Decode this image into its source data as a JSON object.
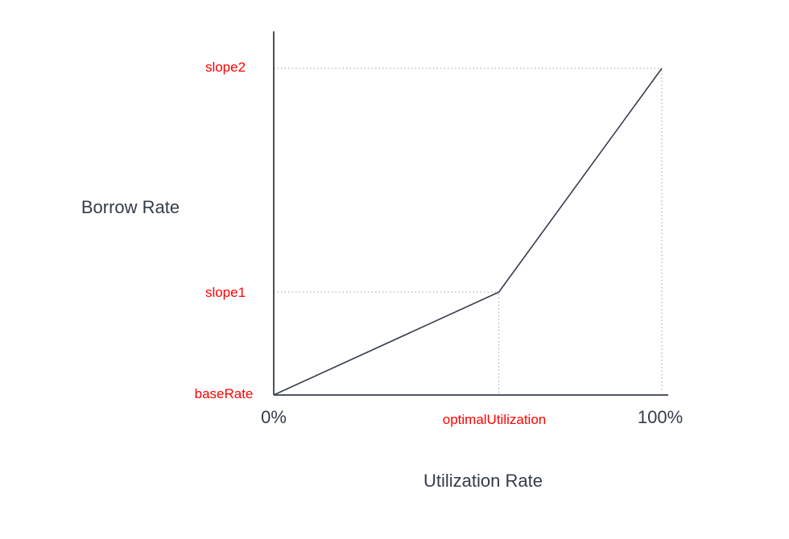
{
  "colors": {
    "background": "#ffffff",
    "curve_line": "#363d4b",
    "axis_line": "#363d4b",
    "text_dark": "#343c49",
    "label_red": "#ff0000",
    "guide_dotted": "#b5b5b5"
  },
  "chart_data": {
    "type": "line",
    "title": "",
    "xlabel": "Utilization Rate",
    "ylabel": "Borrow Rate",
    "x_tick_labels": [
      "0%",
      "optimalUtilization",
      "100%"
    ],
    "y_tick_labels": [
      "baseRate",
      "slope1",
      "slope2"
    ],
    "x_range": [
      "0%",
      "100%"
    ],
    "grid": "dotted guide lines from axes to the kink point (optimalUtilization, slope1) and to the curve end (100%, slope2)",
    "legend": "none",
    "series": [
      {
        "name": "borrow-rate-curve",
        "points": [
          {
            "x_label": "0%",
            "y_label": "baseRate",
            "x_frac": 0,
            "y_frac": 0
          },
          {
            "x_label": "optimalUtilization",
            "y_label": "slope1",
            "x_frac": 0.58,
            "y_frac": 0.315
          },
          {
            "x_label": "100%",
            "y_label": "slope2",
            "x_frac": 1,
            "y_frac": 1
          }
        ]
      }
    ]
  }
}
